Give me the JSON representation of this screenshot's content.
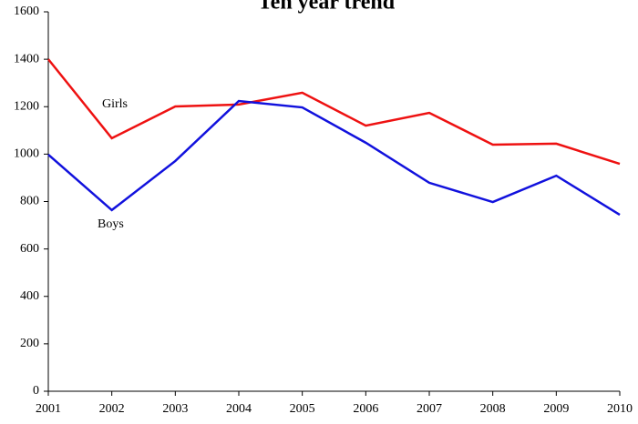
{
  "chart_data": {
    "type": "line",
    "title": "Ten year trend",
    "x": [
      2001,
      2002,
      2003,
      2004,
      2005,
      2006,
      2007,
      2008,
      2009,
      2010
    ],
    "series": [
      {
        "name": "Girls",
        "color": "#ee1111",
        "values": [
          1400,
          1067,
          1201,
          1209,
          1259,
          1120,
          1174,
          1040,
          1044,
          959
        ]
      },
      {
        "name": "Boys",
        "color": "#1111dd",
        "values": [
          998,
          764,
          971,
          1224,
          1197,
          1048,
          879,
          798,
          909,
          744
        ]
      }
    ],
    "xlim": [
      2001,
      2010
    ],
    "xticks": [
      2001,
      2002,
      2003,
      2004,
      2005,
      2006,
      2007,
      2008,
      2009,
      2010
    ],
    "ylim": [
      0,
      1600
    ],
    "yticks": [
      0,
      200,
      400,
      600,
      800,
      1000,
      1200,
      1400,
      1600
    ],
    "grid": false
  }
}
